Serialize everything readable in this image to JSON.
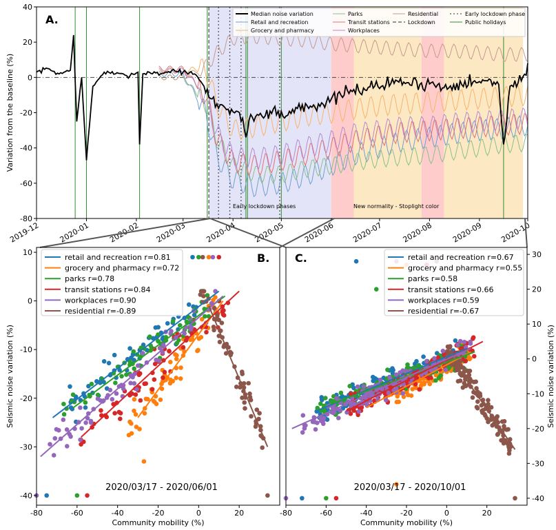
{
  "chart_data": [
    {
      "panel": "A.",
      "type": "line",
      "ylabel": "Variation from the baseline (%)",
      "xlabel": "",
      "ylim": [
        -80,
        40
      ],
      "yticks": [
        -80,
        -60,
        -40,
        -20,
        0,
        20,
        40
      ],
      "xticks": [
        "2019-12",
        "2020-01",
        "2020-02",
        "2020-03",
        "2020-04",
        "2020-05",
        "2020-06",
        "2020-07",
        "2020-08",
        "2020-09",
        "2020-10"
      ],
      "x_range": [
        "2019-12-01",
        "2020-10-01"
      ],
      "legend_position": "top-right",
      "legend": [
        "Median noise variation",
        "Retail and recreation",
        "Grocery and pharmacy",
        "Parks",
        "Transit stations",
        "Workplaces",
        "Residential",
        "Lockdown",
        "Early lockdown phase",
        "Public holidays"
      ],
      "region_labels": [
        "Early lockdown phases",
        "New normality - Stoplight color"
      ],
      "regions": [
        {
          "start": "2020-03-17",
          "end": "2020-06-01",
          "color": "#e4e4f8",
          "meaning": "Early lockdown phases"
        },
        {
          "start": "2020-06-01",
          "end": "2020-06-15",
          "color": "#ffcccc",
          "meaning": "red"
        },
        {
          "start": "2020-06-15",
          "end": "2020-07-27",
          "color": "#fde8c4",
          "meaning": "orange"
        },
        {
          "start": "2020-07-27",
          "end": "2020-08-10",
          "color": "#ffcccc",
          "meaning": "red"
        },
        {
          "start": "2020-08-10",
          "end": "2020-09-28",
          "color": "#fde8c4",
          "meaning": "orange"
        }
      ],
      "lockdown_date": "2020-03-17",
      "early_lockdown_phase_dates": [
        "2020-03-23",
        "2020-03-30",
        "2020-04-06",
        "2020-04-30"
      ],
      "public_holidays": [
        "2019-12-25",
        "2020-01-01",
        "2020-02-03",
        "2020-03-16",
        "2020-04-09",
        "2020-04-10",
        "2020-05-01",
        "2020-09-16"
      ],
      "series": [
        {
          "name": "Median noise variation",
          "color": "#000000",
          "x": [
            "2019-12-01",
            "2019-12-08",
            "2019-12-15",
            "2019-12-22",
            "2019-12-24",
            "2019-12-26",
            "2019-12-29",
            "2020-01-01",
            "2020-01-05",
            "2020-01-12",
            "2020-01-19",
            "2020-01-26",
            "2020-02-02",
            "2020-02-03",
            "2020-02-05",
            "2020-02-09",
            "2020-02-16",
            "2020-02-23",
            "2020-03-01",
            "2020-03-08",
            "2020-03-14",
            "2020-03-18",
            "2020-03-22",
            "2020-03-29",
            "2020-04-05",
            "2020-04-09",
            "2020-04-12",
            "2020-04-19",
            "2020-04-26",
            "2020-05-03",
            "2020-05-10",
            "2020-05-17",
            "2020-05-24",
            "2020-05-31",
            "2020-06-07",
            "2020-06-14",
            "2020-06-21",
            "2020-06-28",
            "2020-07-05",
            "2020-07-12",
            "2020-07-19",
            "2020-07-26",
            "2020-08-02",
            "2020-08-09",
            "2020-08-16",
            "2020-08-23",
            "2020-08-30",
            "2020-09-06",
            "2020-09-13",
            "2020-09-16",
            "2020-09-20",
            "2020-09-27",
            "2020-10-01"
          ],
          "y": [
            3,
            5,
            2,
            4,
            24,
            -25,
            0,
            -47,
            -5,
            3,
            2,
            1,
            3,
            -38,
            2,
            3,
            2,
            4,
            3,
            2,
            -5,
            -12,
            -15,
            -18,
            -20,
            -34,
            -21,
            -22,
            -18,
            -23,
            -17,
            -16,
            -15,
            -14,
            -10,
            -8,
            -6,
            -5,
            -4,
            -2,
            -3,
            -4,
            -3,
            -6,
            -4,
            -2,
            -3,
            -2,
            -4,
            -38,
            -5,
            -2,
            8
          ]
        },
        {
          "name": "Retail and recreation",
          "color": "#6f9fd0",
          "x": [
            "2020-02-15",
            "2020-03-01",
            "2020-03-15",
            "2020-03-22",
            "2020-04-01",
            "2020-04-15",
            "2020-05-01",
            "2020-05-15",
            "2020-06-01",
            "2020-06-15",
            "2020-07-01",
            "2020-07-15",
            "2020-08-01",
            "2020-08-15",
            "2020-09-01",
            "2020-09-15",
            "2020-10-01"
          ],
          "y": [
            2,
            2,
            -20,
            -45,
            -58,
            -62,
            -60,
            -56,
            -50,
            -44,
            -40,
            -36,
            -34,
            -32,
            -30,
            -29,
            -27
          ]
        },
        {
          "name": "Grocery and pharmacy",
          "color": "#f7b36b",
          "x": [
            "2020-02-15",
            "2020-03-01",
            "2020-03-15",
            "2020-03-22",
            "2020-04-01",
            "2020-04-15",
            "2020-05-01",
            "2020-05-15",
            "2020-06-01",
            "2020-06-15",
            "2020-07-01",
            "2020-07-15",
            "2020-08-01",
            "2020-08-15",
            "2020-09-01",
            "2020-09-15",
            "2020-10-01"
          ],
          "y": [
            3,
            4,
            5,
            -15,
            -30,
            -28,
            -25,
            -22,
            -20,
            -18,
            -16,
            -15,
            -14,
            -13,
            -12,
            -11,
            -10
          ]
        },
        {
          "name": "Parks",
          "color": "#88c088",
          "x": [
            "2020-02-15",
            "2020-03-01",
            "2020-03-15",
            "2020-03-22",
            "2020-04-01",
            "2020-04-15",
            "2020-05-01",
            "2020-05-15",
            "2020-06-01",
            "2020-06-15",
            "2020-07-01",
            "2020-07-15",
            "2020-08-01",
            "2020-08-15",
            "2020-09-01",
            "2020-09-15",
            "2020-10-01"
          ],
          "y": [
            0,
            0,
            -15,
            -35,
            -50,
            -55,
            -55,
            -52,
            -50,
            -48,
            -46,
            -45,
            -44,
            -42,
            -40,
            -38,
            -37
          ]
        },
        {
          "name": "Transit stations",
          "color": "#e07070",
          "x": [
            "2020-02-15",
            "2020-03-01",
            "2020-03-15",
            "2020-03-22",
            "2020-04-01",
            "2020-04-15",
            "2020-05-01",
            "2020-05-15",
            "2020-06-01",
            "2020-06-15",
            "2020-07-01",
            "2020-07-15",
            "2020-08-01",
            "2020-08-15",
            "2020-09-01",
            "2020-09-15",
            "2020-10-01"
          ],
          "y": [
            5,
            5,
            -10,
            -35,
            -48,
            -50,
            -47,
            -44,
            -40,
            -36,
            -33,
            -31,
            -30,
            -29,
            -28,
            -27,
            -26
          ]
        },
        {
          "name": "Workplaces",
          "color": "#b48ad0",
          "x": [
            "2020-02-15",
            "2020-03-01",
            "2020-03-15",
            "2020-03-22",
            "2020-04-01",
            "2020-04-15",
            "2020-05-01",
            "2020-05-15",
            "2020-06-01",
            "2020-06-15",
            "2020-07-01",
            "2020-07-15",
            "2020-08-01",
            "2020-08-15",
            "2020-09-01",
            "2020-09-15",
            "2020-10-01"
          ],
          "y": [
            4,
            4,
            -10,
            -32,
            -45,
            -46,
            -44,
            -40,
            -36,
            -32,
            -30,
            -28,
            -28,
            -26,
            -25,
            -24,
            -23
          ]
        },
        {
          "name": "Residential",
          "color": "#c49a8f",
          "x": [
            "2020-02-15",
            "2020-03-01",
            "2020-03-15",
            "2020-03-22",
            "2020-04-01",
            "2020-04-15",
            "2020-05-01",
            "2020-05-15",
            "2020-06-01",
            "2020-06-15",
            "2020-07-01",
            "2020-07-15",
            "2020-08-01",
            "2020-08-15",
            "2020-09-01",
            "2020-09-15",
            "2020-10-01"
          ],
          "y": [
            0,
            0,
            6,
            14,
            22,
            23,
            22,
            21,
            19,
            18,
            17,
            16,
            15,
            15,
            14,
            13,
            13
          ]
        }
      ]
    },
    {
      "panel": "B.",
      "type": "scatter",
      "xlabel": "Community mobility (%)",
      "ylabel": "Seismic noise variation (%)",
      "annotation": "2020/03/17 - 2020/06/01",
      "xlim": [
        -80,
        40
      ],
      "ylim": [
        -42,
        11
      ],
      "xticks": [
        -80,
        -60,
        -40,
        -20,
        0,
        20
      ],
      "yticks": [
        -40,
        -30,
        -20,
        -10,
        0,
        10
      ],
      "legend_position": "top-left",
      "legend": [
        "retail and recreation r=0.81",
        "grocery and pharmacy r=0.72",
        "parks r=0.78",
        "transit stations r=0.84",
        "workplaces r=0.90",
        "residential r=-0.89"
      ],
      "series": [
        {
          "name": "retail and recreation",
          "r": 0.81,
          "color": "#1f77b4",
          "fit_x": [
            -72,
            10
          ],
          "fit_y": [
            -24,
            2
          ],
          "cluster": {
            "x": [
              -65,
              0
            ],
            "y": [
              -29,
              2
            ]
          },
          "outliers": [
            [
              -75,
              -40
            ],
            [
              -3,
              9
            ]
          ]
        },
        {
          "name": "grocery and pharmacy",
          "r": 0.72,
          "color": "#ff7f0e",
          "fit_x": [
            -30,
            12
          ],
          "fit_y": [
            -24,
            0
          ],
          "cluster": {
            "x": [
              -35,
              10
            ],
            "y": [
              -33,
              1
            ]
          },
          "outliers": [
            [
              -27,
              -33
            ],
            [
              5,
              9
            ]
          ]
        },
        {
          "name": "parks",
          "r": 0.78,
          "color": "#2ca02c",
          "fit_x": [
            -62,
            13
          ],
          "fit_y": [
            -22,
            1
          ],
          "cluster": {
            "x": [
              -68,
              5
            ],
            "y": [
              -33,
              3
            ]
          },
          "outliers": [
            [
              -60,
              -40
            ],
            [
              0,
              9
            ]
          ]
        },
        {
          "name": "transit stations",
          "r": 0.84,
          "color": "#d62728",
          "fit_x": [
            -58,
            20
          ],
          "fit_y": [
            -28,
            2
          ],
          "cluster": {
            "x": [
              -60,
              15
            ],
            "y": [
              -30,
              2
            ]
          },
          "outliers": [
            [
              -55,
              -40
            ],
            [
              10,
              9
            ]
          ]
        },
        {
          "name": "workplaces",
          "r": 0.9,
          "color": "#9467bd",
          "fit_x": [
            -78,
            12
          ],
          "fit_y": [
            -32,
            1
          ],
          "cluster": {
            "x": [
              -75,
              10
            ],
            "y": [
              -33,
              2
            ]
          },
          "outliers": [
            [
              -80,
              -40
            ],
            [
              7,
              9
            ]
          ]
        },
        {
          "name": "residential",
          "r": -0.89,
          "color": "#8c564b",
          "fit_x": [
            5,
            34
          ],
          "fit_y": [
            -1,
            -30
          ],
          "cluster": {
            "x": [
              0,
              32
            ],
            "y": [
              -33,
              2
            ]
          },
          "outliers": [
            [
              34,
              -40
            ],
            [
              2,
              9
            ]
          ]
        }
      ]
    },
    {
      "panel": "C.",
      "type": "scatter",
      "xlabel": "Community mobility (%)",
      "ylabel": "Seismic noise variation (%)",
      "annotation": "2020/03/17 - 2020/10/01",
      "xlim": [
        -80,
        40
      ],
      "ylim": [
        -42,
        32
      ],
      "xticks": [
        -80,
        -60,
        -40,
        -20,
        0,
        20
      ],
      "yticks": [
        -40,
        -30,
        -20,
        -10,
        0,
        10,
        20,
        30
      ],
      "legend_position": "top-right",
      "legend": [
        "retail and recreation r=0.67",
        "grocery and pharmacy r=0.55",
        "parks r=0.58",
        "transit stations r=0.66",
        "workplaces r=0.59",
        "residential r=-0.67"
      ],
      "series": [
        {
          "name": "retail and recreation",
          "r": 0.67,
          "color": "#1f77b4",
          "fit_x": [
            -65,
            10
          ],
          "fit_y": [
            -15,
            3
          ],
          "cluster": {
            "x": [
              -65,
              5
            ],
            "y": [
              -35,
              10
            ]
          },
          "outliers": [
            [
              -72,
              -40
            ],
            [
              -45,
              28
            ]
          ]
        },
        {
          "name": "grocery and pharmacy",
          "r": 0.55,
          "color": "#ff7f0e",
          "fit_x": [
            -40,
            12
          ],
          "fit_y": [
            -14,
            2
          ],
          "cluster": {
            "x": [
              -30,
              12
            ],
            "y": [
              -34,
              5
            ]
          },
          "outliers": [
            [
              -25,
              -36
            ],
            [
              -20,
              27
            ]
          ]
        },
        {
          "name": "parks",
          "r": 0.58,
          "color": "#2ca02c",
          "fit_x": [
            -58,
            14
          ],
          "fit_y": [
            -13,
            2
          ],
          "cluster": {
            "x": [
              -65,
              10
            ],
            "y": [
              -34,
              12
            ]
          },
          "outliers": [
            [
              -60,
              -40
            ],
            [
              -35,
              20
            ]
          ]
        },
        {
          "name": "transit stations",
          "r": 0.66,
          "color": "#d62728",
          "fit_x": [
            -50,
            18
          ],
          "fit_y": [
            -15,
            5
          ],
          "cluster": {
            "x": [
              -50,
              15
            ],
            "y": [
              -30,
              10
            ]
          },
          "outliers": [
            [
              -55,
              -40
            ],
            [
              -10,
              27
            ]
          ]
        },
        {
          "name": "workplaces",
          "r": 0.59,
          "color": "#9467bd",
          "fit_x": [
            -77,
            12
          ],
          "fit_y": [
            -20,
            3
          ],
          "cluster": {
            "x": [
              -72,
              12
            ],
            "y": [
              -33,
              12
            ]
          },
          "outliers": [
            [
              -80,
              -40
            ],
            [
              -25,
              28
            ]
          ]
        },
        {
          "name": "residential",
          "r": -0.67,
          "color": "#8c564b",
          "fit_x": [
            5,
            34
          ],
          "fit_y": [
            -2,
            -26
          ],
          "cluster": {
            "x": [
              0,
              32
            ],
            "y": [
              -33,
              5
            ]
          },
          "outliers": [
            [
              34,
              -40
            ],
            [
              -5,
              28
            ]
          ]
        }
      ]
    }
  ]
}
